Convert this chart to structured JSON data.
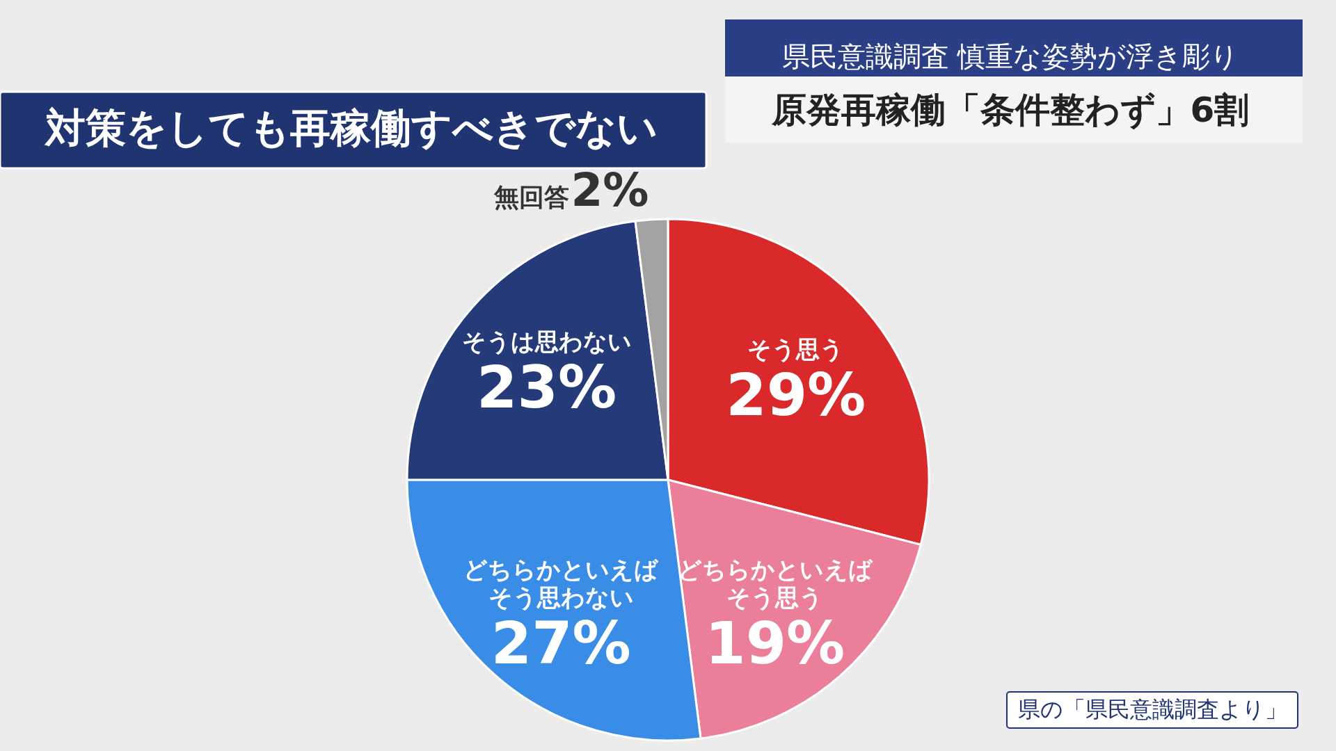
{
  "chart_data": {
    "type": "pie",
    "title": "対策をしても再稼働すべきでない",
    "subtitle": "県民意識調査 慎重な姿勢が浮き彫り",
    "annotations": [
      "原発再稼働「条件整わず」6割",
      "県の「県民意識調査より」"
    ],
    "categories": [
      "そう思う",
      "どちらかといえばそう思う",
      "どちらかといえばそう思わない",
      "そうは思わない",
      "無回答"
    ],
    "values": [
      29,
      19,
      27,
      23,
      2
    ],
    "value_labels": [
      "29%",
      "19%",
      "27%",
      "23%",
      "2%"
    ],
    "colors": [
      "#d9292b",
      "#eb7f9a",
      "#3a8de6",
      "#253a78",
      "#a3a3a3"
    ]
  }
}
